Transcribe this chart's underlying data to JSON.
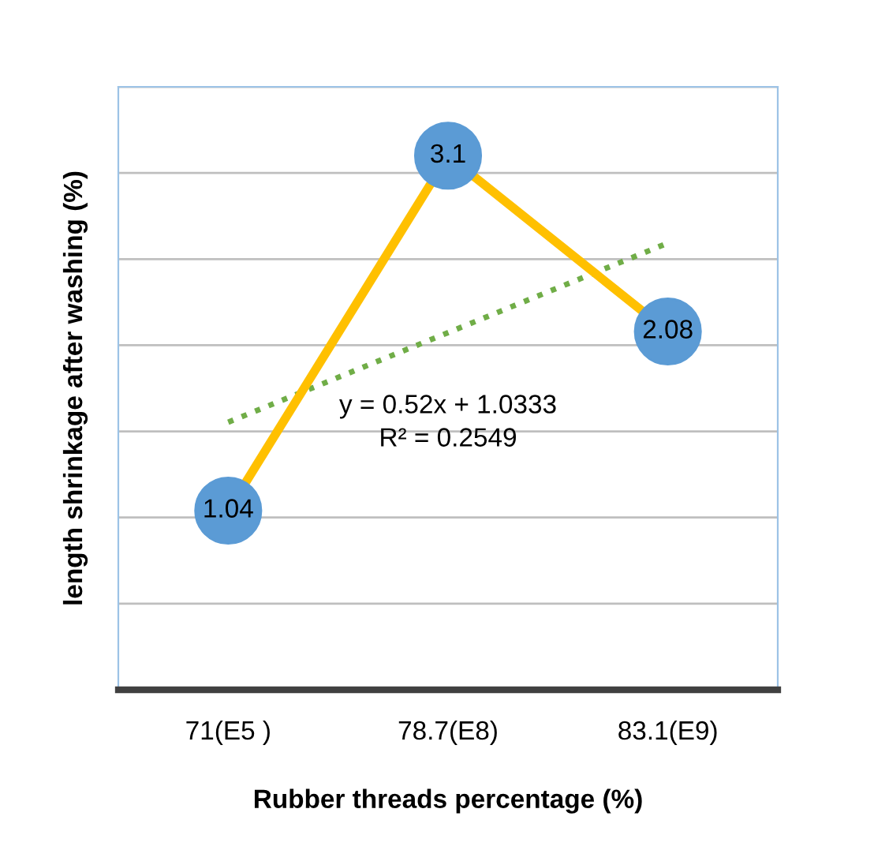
{
  "chart_data": {
    "type": "line",
    "xlabel": "Rubber threads percentage (%)",
    "ylabel": "length shrinkage after washing (%)",
    "categories": [
      "71(E5 )",
      "78.7(E8)",
      "83.1(E9)"
    ],
    "series": [
      {
        "color": "#ffc000",
        "values": [
          1.04,
          3.1,
          2.08
        ],
        "marker": "circle",
        "data_labels": true,
        "line_style": "solid"
      },
      {
        "color": "#70ad47",
        "values": [
          1.5533,
          2.0733,
          2.5933
        ],
        "marker": "none",
        "line_style": "dotted"
      }
    ],
    "ylim": [
      0,
      3.5
    ],
    "yticks": [
      {
        "value": 0,
        "label": null
      },
      {
        "value": 0.5,
        "label": null
      },
      {
        "value": 1,
        "label": null
      },
      {
        "value": 1.5,
        "label": null
      },
      {
        "value": 2,
        "label": null
      },
      {
        "value": 2.5,
        "label": null
      },
      {
        "value": 3,
        "label": null
      },
      {
        "value": 3.5,
        "label": null
      }
    ],
    "tick_labels": "x",
    "grid": "y",
    "legend": false,
    "annotations": [
      "y = 0.52x + 1.0333",
      "R² = 0.2549"
    ]
  }
}
